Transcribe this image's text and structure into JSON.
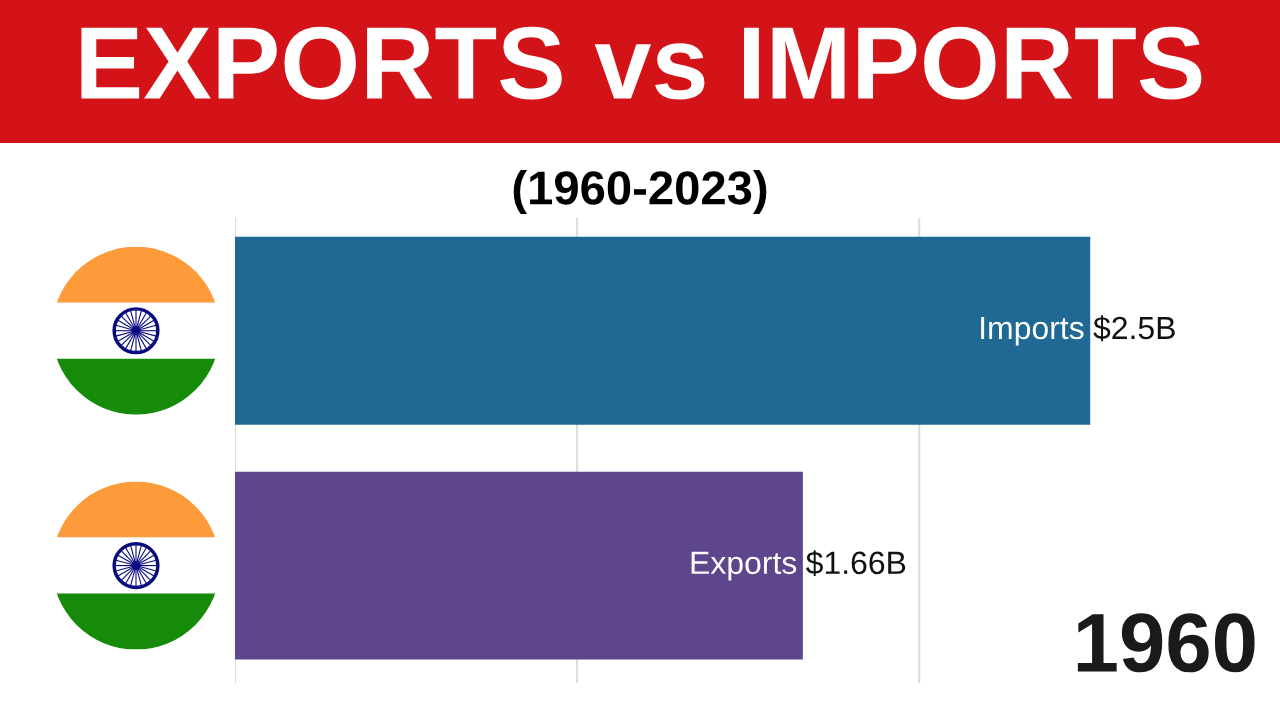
{
  "chart_data": {
    "type": "bar",
    "orientation": "horizontal",
    "title": "EXPORTS vs IMPORTS",
    "subtitle": "(1960-2023)",
    "categories": [
      "Imports",
      "Exports"
    ],
    "values": [
      2.5,
      1.66
    ],
    "colors": [
      "#1f6994",
      "#5e468d"
    ],
    "value_labels": [
      "$2.5B",
      "$1.66B"
    ],
    "ref_lines": [
      {
        "axis": "x",
        "value": 0,
        "color": "#dddddd"
      },
      {
        "axis": "x",
        "value": 1,
        "color": "#dddddd"
      },
      {
        "axis": "x",
        "value": 2,
        "color": "#dddddd"
      }
    ],
    "tick_labels": "y",
    "annotations": [
      "1960"
    ]
  }
}
